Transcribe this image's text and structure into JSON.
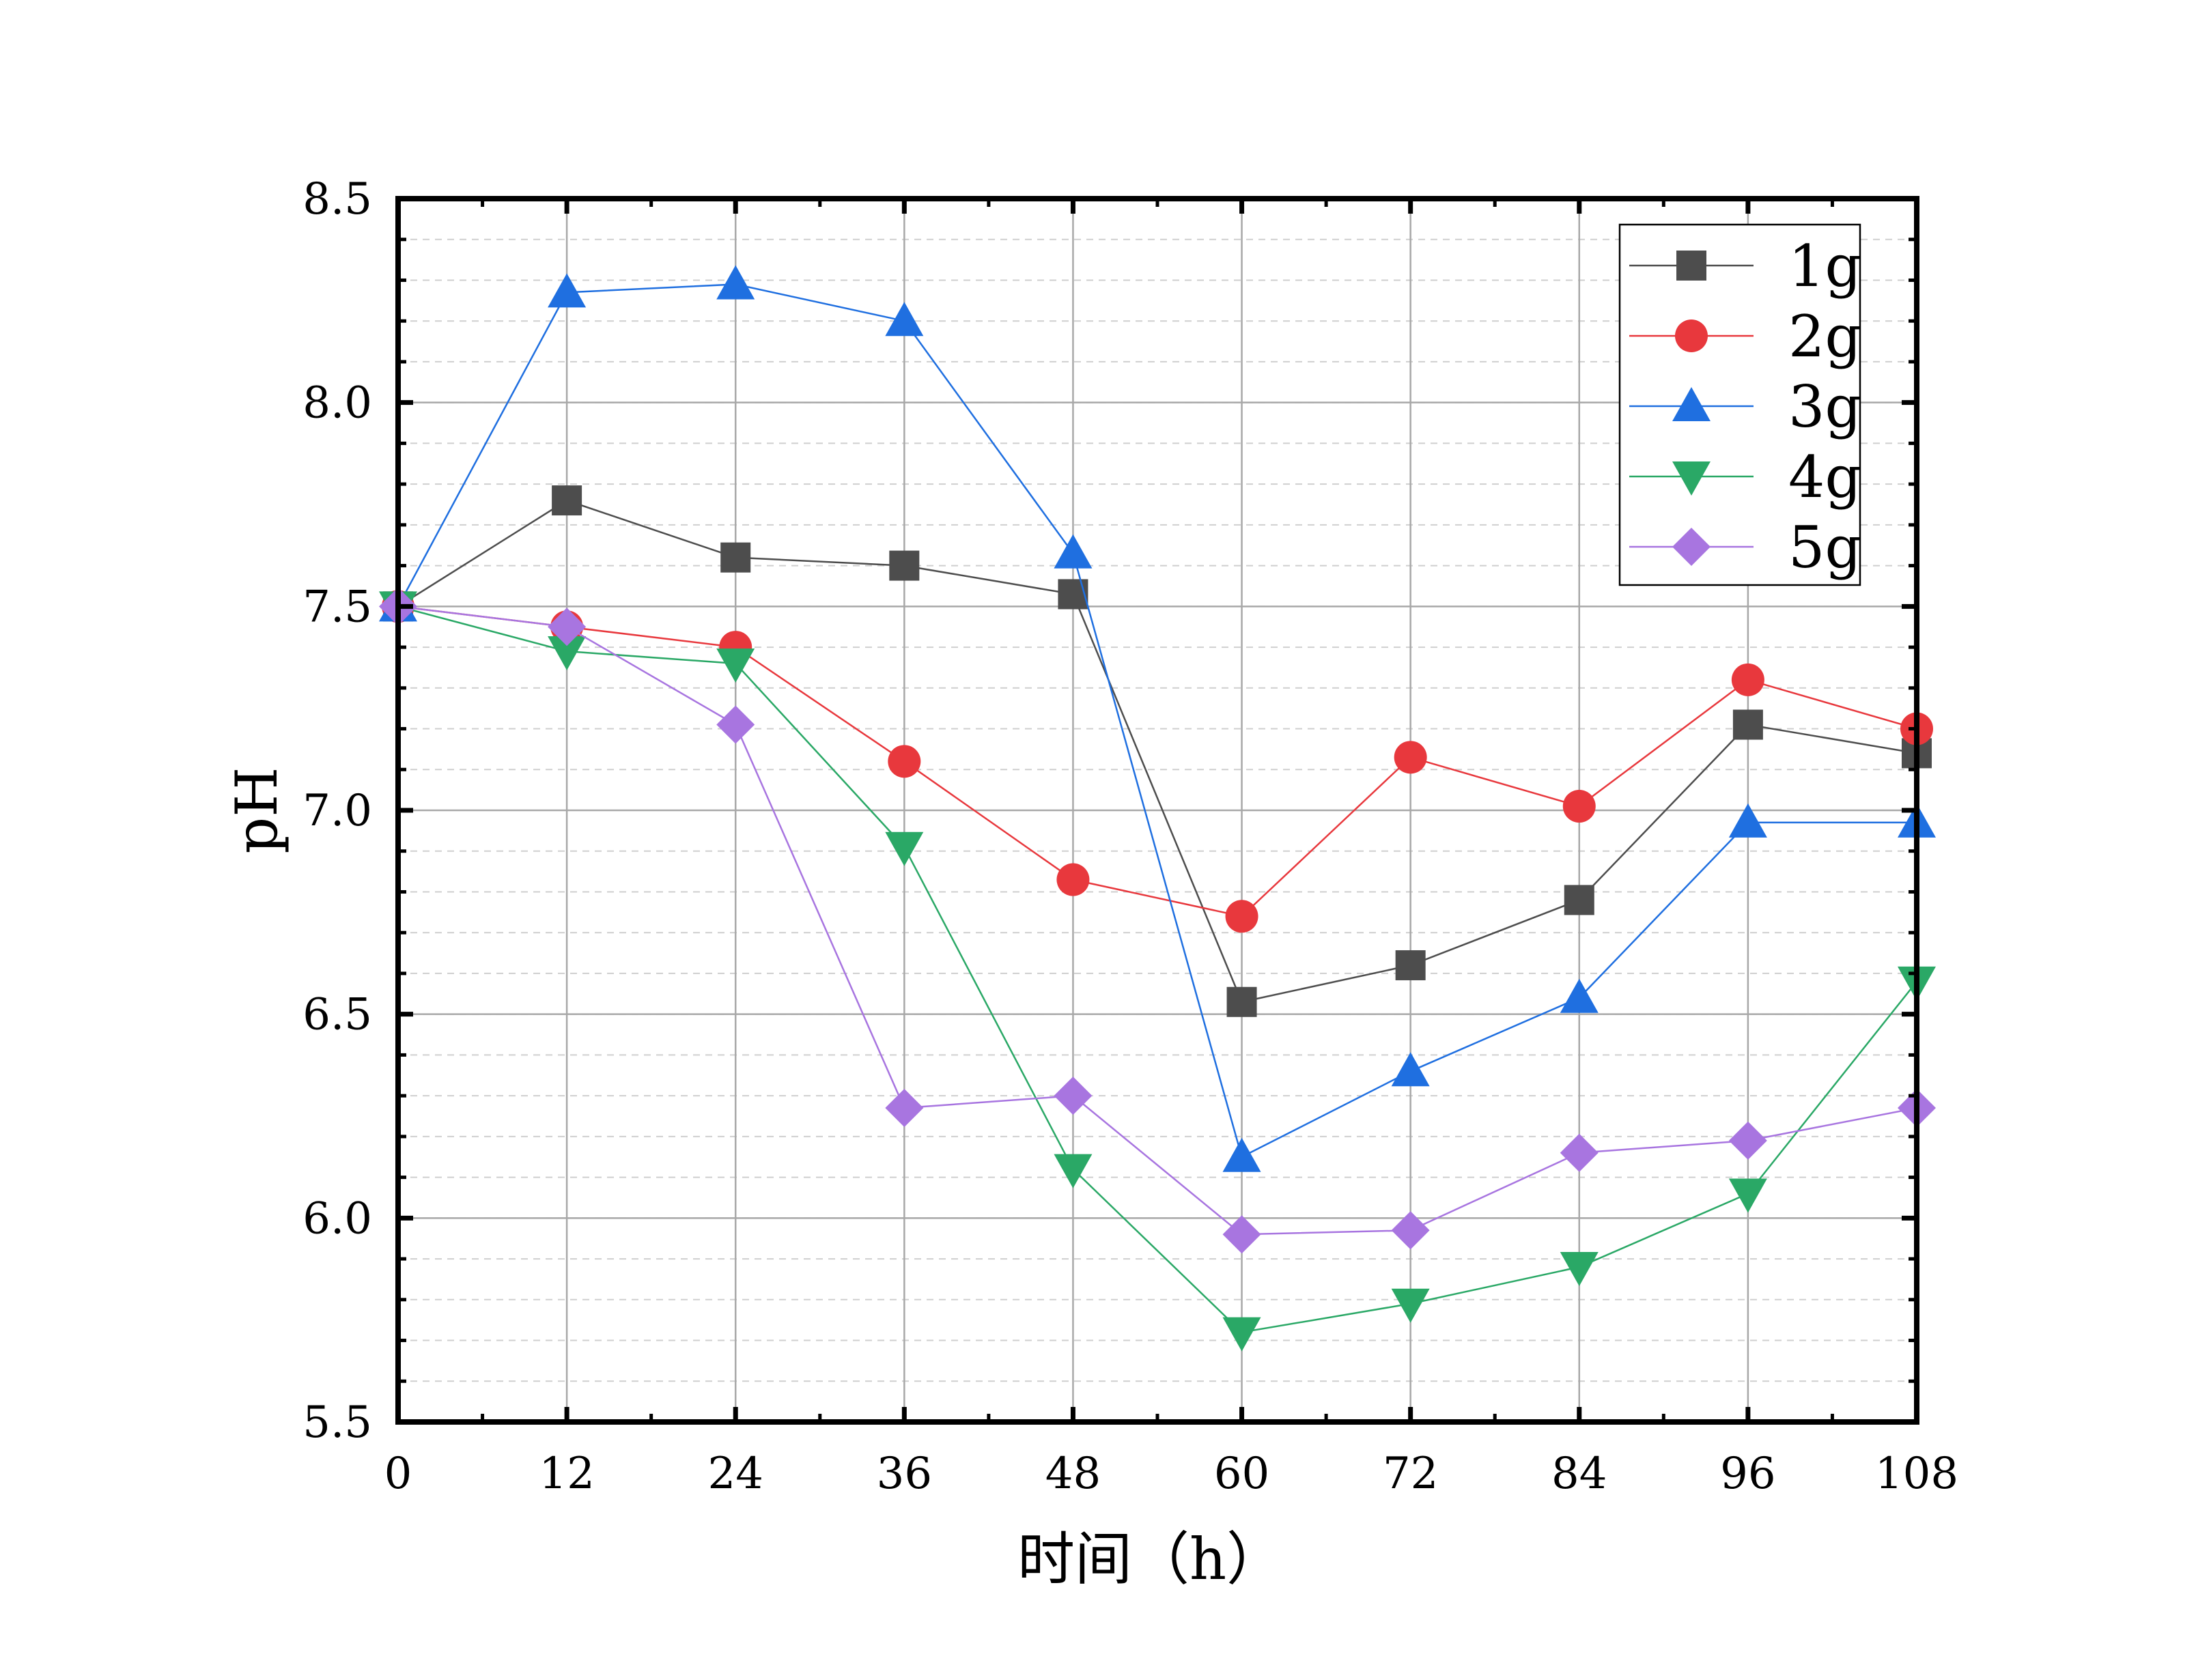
{
  "chart_data": {
    "type": "line",
    "title": "",
    "xlabel": "时间（h）",
    "ylabel": "pH",
    "x": [
      0,
      12,
      24,
      36,
      48,
      60,
      72,
      84,
      96,
      108
    ],
    "x_ticks": [
      "0",
      "12",
      "24",
      "36",
      "48",
      "60",
      "72",
      "84",
      "96",
      "108"
    ],
    "y_ticks": [
      "5.5",
      "6.0",
      "6.5",
      "7.0",
      "7.5",
      "8.0",
      "8.5"
    ],
    "xlim": [
      0,
      108
    ],
    "ylim": [
      5.5,
      8.5
    ],
    "grid": true,
    "legend_position": "top-right",
    "series": [
      {
        "name": "1g",
        "color": "#4d4d4d",
        "marker": "square",
        "values": [
          7.5,
          7.76,
          7.62,
          7.6,
          7.53,
          6.53,
          6.62,
          6.78,
          7.21,
          7.14
        ]
      },
      {
        "name": "2g",
        "color": "#e8383d",
        "marker": "circle",
        "values": [
          7.5,
          7.45,
          7.4,
          7.12,
          6.83,
          6.74,
          7.13,
          7.01,
          7.32,
          7.2
        ]
      },
      {
        "name": "3g",
        "color": "#1f6fe0",
        "marker": "triangle-up",
        "values": [
          7.5,
          8.27,
          8.29,
          8.2,
          7.63,
          6.15,
          6.36,
          6.54,
          6.97,
          6.97
        ]
      },
      {
        "name": "4g",
        "color": "#2aa866",
        "marker": "triangle-down",
        "values": [
          7.5,
          7.39,
          7.36,
          6.91,
          6.12,
          5.72,
          5.79,
          5.88,
          6.06,
          6.58
        ]
      },
      {
        "name": "5g",
        "color": "#a875e0",
        "marker": "diamond",
        "values": [
          7.5,
          7.45,
          7.21,
          6.27,
          6.3,
          5.96,
          5.97,
          6.16,
          6.19,
          6.27
        ]
      }
    ]
  }
}
